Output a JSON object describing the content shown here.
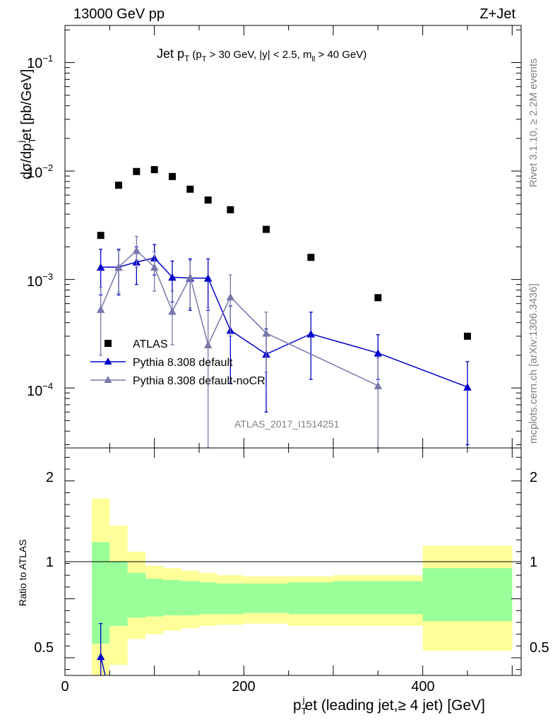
{
  "header": {
    "left": "13000 GeV pp",
    "right": "Z+Jet",
    "side_top": "Rivet 3.1.10, ≥ 2.2M events",
    "side_bottom": "mcplots.cern.ch [arXiv:1306.3436]"
  },
  "chart_data": [
    {
      "type": "scatter",
      "panel": "main",
      "title": "Jet p",
      "title_sub": "T",
      "title_cuts": "(p",
      "title_cuts_sub": "T",
      "title_cuts_rest": " > 30 GeV, |y| < 2.5, m",
      "title_cuts_sub2": "ll",
      "title_cuts_end": " > 40 GeV)",
      "ylabel": "dσ/dp",
      "ylabel_sub": "T",
      "ylabel_sup": "j",
      "ylabel_rest": "et [pb/GeV]",
      "yscale": "log",
      "ylim": [
        2.8e-05,
        0.22
      ],
      "xlim": [
        0,
        510
      ],
      "ytick_labels": [
        {
          "mant": "10",
          "exp": "−1",
          "value": 0.1
        },
        {
          "mant": "10",
          "exp": "−2",
          "value": 0.01
        },
        {
          "mant": "10",
          "exp": "−3",
          "value": 0.001
        },
        {
          "mant": "10",
          "exp": "−4",
          "value": 0.0001
        }
      ],
      "watermark": "ATLAS_2017_I1514251",
      "legend_position": "lower-left",
      "series": [
        {
          "name": "ATLAS",
          "marker": "square",
          "color": "#000000",
          "x": [
            40,
            60,
            80,
            100,
            120,
            140,
            160,
            185,
            225,
            275,
            350,
            450
          ],
          "y": [
            0.00255,
            0.0074,
            0.0099,
            0.0103,
            0.0089,
            0.0068,
            0.0054,
            0.0044,
            0.0029,
            0.0016,
            0.00068,
            0.0003
          ]
        },
        {
          "name": "Pythia 8.308 default",
          "marker": "triangle",
          "color": "#0000cc",
          "x": [
            40,
            60,
            80,
            100,
            120,
            140,
            160,
            185,
            225,
            275,
            350,
            450
          ],
          "y": [
            0.0013,
            0.0013,
            0.00145,
            0.00158,
            0.00105,
            0.00103,
            0.00103,
            0.00034,
            0.000205,
            0.000315,
            0.00021,
            0.000102
          ],
          "ylo": [
            0.00072,
            0.00072,
            0.0009,
            0.0011,
            0.00062,
            0.00052,
            0.00052,
            0.00011,
            6e-05,
            0.00012,
            0.00012,
            3e-05
          ],
          "yhi": [
            0.0019,
            0.0019,
            0.002,
            0.0021,
            0.00148,
            0.00155,
            0.00155,
            0.00057,
            0.00035,
            0.0005,
            0.00031,
            0.000175
          ]
        },
        {
          "name": "Pythia 8.308 default-noCR",
          "marker": "triangle",
          "color": "#7777aa",
          "x": [
            40,
            60,
            80,
            100,
            120,
            140,
            160,
            185,
            225,
            350
          ],
          "y": [
            0.00053,
            0.0013,
            0.00185,
            0.0013,
            0.00051,
            0.00105,
            0.00025,
            0.00069,
            0.00032,
            0.000105
          ],
          "ylo": [
            0.0002,
            0.00075,
            0.0013,
            0.00078,
            0.00025,
            0.00055,
            1e-05,
            0.0003,
            0.00014,
            1e-05
          ],
          "yhi": [
            0.00085,
            0.00185,
            0.0025,
            0.0018,
            0.00078,
            0.0015,
            0.00055,
            0.0011,
            0.0005,
            0.00019
          ]
        }
      ]
    },
    {
      "type": "area",
      "panel": "ratio",
      "ylabel": "Ratio to ATLAS",
      "xlabel": "p",
      "xlabel_sub": "T",
      "xlabel_sup": "j",
      "xlabel_rest": "et (leading jet,≥ 4 jet) [GeV]",
      "ylim": [
        0.35,
        2.28
      ],
      "xlim": [
        0,
        510
      ],
      "yticks": [
        {
          "label": "0.5",
          "value": 0.5
        },
        {
          "label": "1",
          "value": 1
        },
        {
          "label": "2",
          "value": 2
        }
      ],
      "xticks": [
        {
          "label": "0",
          "value": 0
        },
        {
          "label": "200",
          "value": 200
        },
        {
          "label": "400",
          "value": 400
        }
      ],
      "bin_edges": [
        30,
        50,
        70,
        90,
        110,
        130,
        150,
        170,
        200,
        250,
        300,
        400,
        500
      ],
      "band_yellow": {
        "lo": [
          0.25,
          0.44,
          0.66,
          0.7,
          0.73,
          0.75,
          0.77,
          0.78,
          0.79,
          0.77,
          0.77,
          0.56
        ],
        "hi": [
          1.85,
          1.62,
          1.4,
          1.28,
          1.26,
          1.24,
          1.22,
          1.2,
          1.19,
          1.19,
          1.2,
          1.45
        ]
      },
      "band_green": {
        "lo": [
          0.62,
          0.77,
          0.84,
          0.85,
          0.86,
          0.86,
          0.87,
          0.87,
          0.88,
          0.87,
          0.87,
          0.81
        ],
        "hi": [
          1.48,
          1.32,
          1.22,
          1.17,
          1.16,
          1.15,
          1.14,
          1.13,
          1.13,
          1.14,
          1.15,
          1.26
        ]
      },
      "series": [
        {
          "name": "Pythia 8.308 default",
          "color": "#0000cc",
          "x": [
            40,
            45
          ],
          "y": [
            0.51,
            0.35
          ],
          "ylo": [
            0.3,
            0.35
          ],
          "yhi": [
            0.79,
            0.35
          ]
        }
      ]
    }
  ]
}
